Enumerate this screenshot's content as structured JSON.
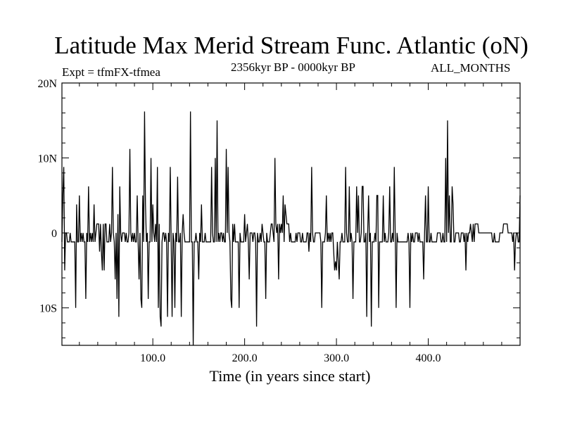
{
  "chart_data": {
    "type": "line",
    "title": "Latitude Max Merid Stream Func. Atlantic (oN)",
    "subtitle_left": "Expt = tfmFX-tfmea",
    "subtitle_center": "2356kyr BP - 0000kyr BP",
    "subtitle_right": "ALL_MONTHS",
    "xlabel": "Time (in years since start)",
    "ylabel": "",
    "xlim": [
      1,
      500
    ],
    "ylim": [
      -15,
      20
    ],
    "x_ticks": [
      {
        "value": 100,
        "label": "100.0"
      },
      {
        "value": 200,
        "label": "200.0"
      },
      {
        "value": 300,
        "label": "300.0"
      },
      {
        "value": 400,
        "label": "400.0"
      }
    ],
    "y_ticks": [
      {
        "value": 20,
        "label": "20N"
      },
      {
        "value": 10,
        "label": "10N"
      },
      {
        "value": 0,
        "label": "0"
      },
      {
        "value": -10,
        "label": "10S"
      }
    ],
    "grid": false,
    "line_color": "#000000",
    "series": [
      {
        "name": "",
        "x": [
          1,
          2,
          3,
          4,
          5,
          6,
          7,
          8,
          9,
          10,
          11,
          12,
          13,
          14,
          15,
          16,
          17,
          18,
          19,
          20,
          21,
          22,
          23,
          24,
          25,
          26,
          27,
          28,
          29,
          30,
          31,
          32,
          33,
          34,
          35,
          36,
          37,
          38,
          39,
          40,
          41,
          42,
          43,
          44,
          45,
          46,
          47,
          48,
          49,
          50,
          51,
          52,
          53,
          54,
          55,
          56,
          57,
          58,
          59,
          60,
          61,
          62,
          63,
          64,
          65,
          66,
          67,
          68,
          69,
          70,
          71,
          72,
          73,
          74,
          75,
          76,
          77,
          78,
          79,
          80,
          81,
          82,
          83,
          84,
          85,
          86,
          87,
          88,
          89,
          90,
          91,
          92,
          93,
          94,
          95,
          96,
          97,
          98,
          99,
          100,
          101,
          102,
          103,
          104,
          105,
          106,
          107,
          108,
          109,
          110,
          111,
          112,
          113,
          114,
          115,
          116,
          117,
          118,
          119,
          120,
          121,
          122,
          123,
          124,
          125,
          126,
          127,
          128,
          129,
          130,
          131,
          132,
          133,
          134,
          135,
          136,
          137,
          138,
          139,
          140,
          141,
          142,
          143,
          144,
          145,
          146,
          147,
          148,
          149,
          150,
          151,
          152,
          153,
          154,
          155,
          156,
          157,
          158,
          159,
          160,
          161,
          162,
          163,
          164,
          165,
          166,
          167,
          168,
          169,
          170,
          171,
          172,
          173,
          174,
          175,
          176,
          177,
          178,
          179,
          180,
          181,
          182,
          183,
          184,
          185,
          186,
          187,
          188,
          189,
          190,
          191,
          192,
          193,
          194,
          195,
          196,
          197,
          198,
          199,
          200,
          201,
          202,
          203,
          204,
          205,
          206,
          207,
          208,
          209,
          210,
          211,
          212,
          213,
          214,
          215,
          216,
          217,
          218,
          219,
          220,
          221,
          222,
          223,
          224,
          225,
          226,
          227,
          228,
          229,
          230,
          231,
          232,
          233,
          234,
          235,
          236,
          237,
          238,
          239,
          240,
          241,
          242,
          243,
          244,
          245,
          246,
          247,
          248,
          249,
          250,
          251,
          252,
          253,
          254,
          255,
          256,
          257,
          258,
          259,
          260,
          261,
          262,
          263,
          264,
          265,
          266,
          267,
          268,
          269,
          270,
          271,
          272,
          273,
          274,
          275,
          276,
          277,
          278,
          279,
          280,
          281,
          282,
          283,
          284,
          285,
          286,
          287,
          288,
          289,
          290,
          291,
          292,
          293,
          294,
          295,
          296,
          297,
          298,
          299,
          300,
          301,
          302,
          303,
          304,
          305,
          306,
          307,
          308,
          309,
          310,
          311,
          312,
          313,
          314,
          315,
          316,
          317,
          318,
          319,
          320,
          321,
          322,
          323,
          324,
          325,
          326,
          327,
          328,
          329,
          330,
          331,
          332,
          333,
          334,
          335,
          336,
          337,
          338,
          339,
          340,
          341,
          342,
          343,
          344,
          345,
          346,
          347,
          348,
          349,
          350,
          351,
          352,
          353,
          354,
          355,
          356,
          357,
          358,
          359,
          360,
          361,
          362,
          363,
          364,
          365,
          366,
          367,
          368,
          369,
          370,
          371,
          372,
          373,
          374,
          375,
          376,
          377,
          378,
          379,
          380,
          381,
          382,
          383,
          384,
          385,
          386,
          387,
          388,
          389,
          390,
          391,
          392,
          393,
          394,
          395,
          396,
          397,
          398,
          399,
          400,
          401,
          402,
          403,
          404,
          405,
          406,
          407,
          408,
          409,
          410,
          411,
          412,
          413,
          414,
          415,
          416,
          417,
          418,
          419,
          420,
          421,
          422,
          423,
          424,
          425,
          426,
          427,
          428,
          429,
          430,
          431,
          432,
          433,
          434,
          435,
          436,
          437,
          438,
          439,
          440,
          441,
          442,
          443,
          444,
          445,
          446,
          447,
          448,
          449,
          450,
          451,
          452,
          453,
          454,
          455,
          456,
          457,
          458,
          459,
          460,
          461,
          462,
          463,
          464,
          465,
          466,
          467,
          468,
          469,
          470,
          471,
          472,
          473,
          474,
          475,
          476,
          477,
          478,
          479,
          480,
          481,
          482,
          483,
          484,
          485,
          486,
          487,
          488,
          489,
          490,
          491,
          492,
          493,
          494,
          495,
          496,
          497,
          498,
          499,
          500
        ],
        "values": [
          -1.2,
          5.0,
          8.8,
          -5.0,
          0.0,
          0.0,
          -1.2,
          -1.2,
          -1.2,
          0.0,
          -1.2,
          -1.2,
          -1.2,
          -1.2,
          -1.2,
          -10.0,
          3.8,
          -1.2,
          -1.2,
          5.0,
          -1.2,
          0.0,
          -1.2,
          0.0,
          -1.2,
          -1.2,
          -8.8,
          0.0,
          -1.2,
          6.2,
          -1.2,
          0.0,
          -1.2,
          0.0,
          -1.2,
          3.8,
          -1.2,
          0.0,
          1.2,
          1.2,
          1.2,
          -2.5,
          1.2,
          -2.5,
          -5.0,
          1.2,
          -5.0,
          1.2,
          1.2,
          -1.2,
          -1.2,
          -1.2,
          1.2,
          -1.2,
          0.0,
          8.8,
          0.0,
          -1.2,
          -6.2,
          0.0,
          -8.8,
          2.5,
          -11.2,
          6.2,
          0.0,
          -1.2,
          0.0,
          0.0,
          0.0,
          -1.2,
          0.0,
          -1.2,
          -1.2,
          0.0,
          11.2,
          0.0,
          -1.2,
          0.0,
          -1.2,
          0.0,
          -1.2,
          -1.2,
          5.0,
          -1.2,
          -6.2,
          0.0,
          -8.8,
          -10.0,
          5.0,
          -1.2,
          16.2,
          3.8,
          -1.2,
          0.0,
          -8.8,
          -1.2,
          -1.2,
          10.0,
          -1.2,
          3.8,
          0.0,
          -1.2,
          1.2,
          -1.2,
          8.8,
          -10.0,
          1.2,
          -11.2,
          -12.5,
          -1.2,
          0.0,
          0.0,
          -1.2,
          0.0,
          -1.2,
          -11.2,
          0.0,
          -1.2,
          8.8,
          -1.2,
          -11.2,
          0.0,
          -1.2,
          -10.0,
          0.0,
          -1.2,
          7.5,
          -1.2,
          -1.2,
          0.0,
          -11.2,
          0.0,
          2.5,
          0.0,
          -1.2,
          -1.2,
          -1.2,
          -1.2,
          -1.2,
          -1.2,
          16.2,
          -1.2,
          -1.2,
          -15.0,
          -1.2,
          -1.2,
          0.0,
          -1.2,
          -1.2,
          -6.2,
          0.0,
          -1.2,
          3.8,
          -1.2,
          -1.2,
          -1.2,
          0.0,
          -1.2,
          -1.2,
          -1.2,
          -1.2,
          -1.2,
          -1.2,
          8.8,
          0.0,
          -1.2,
          -1.2,
          10.0,
          -1.2,
          15.0,
          -1.2,
          0.0,
          -1.2,
          0.0,
          0.0,
          -1.2,
          0.0,
          -1.2,
          -1.2,
          11.2,
          0.0,
          8.8,
          0.0,
          -1.2,
          -8.8,
          -10.0,
          1.2,
          -1.2,
          1.2,
          -1.2,
          -1.2,
          -1.2,
          -1.2,
          -10.0,
          0.0,
          -1.2,
          -1.2,
          -1.2,
          -1.2,
          2.5,
          -1.2,
          0.0,
          1.2,
          -1.2,
          -6.2,
          0.0,
          0.0,
          0.0,
          -1.2,
          0.0,
          0.0,
          -1.2,
          -12.5,
          0.0,
          -1.2,
          -1.2,
          0.0,
          -1.2,
          1.2,
          0.0,
          -1.2,
          -1.2,
          -8.8,
          0.0,
          -1.2,
          -1.2,
          -1.2,
          0.0,
          1.2,
          1.2,
          0.0,
          -1.2,
          10.0,
          1.2,
          0.0,
          1.2,
          -6.2,
          1.2,
          0.0,
          1.2,
          0.0,
          5.0,
          -1.2,
          3.8,
          2.5,
          1.2,
          1.2,
          1.2,
          -1.2,
          0.0,
          -1.2,
          -1.2,
          -1.2,
          -1.2,
          -1.2,
          0.0,
          -1.2,
          0.0,
          0.0,
          0.0,
          -1.2,
          -1.2,
          0.0,
          -1.2,
          -1.2,
          -1.2,
          -1.2,
          0.0,
          0.0,
          -2.5,
          0.0,
          -1.2,
          8.8,
          0.0,
          -1.2,
          -1.2,
          0.0,
          0.0,
          0.0,
          0.0,
          0.0,
          0.0,
          -1.2,
          -10.0,
          -1.2,
          -1.2,
          -1.2,
          0.0,
          5.0,
          -1.2,
          0.0,
          -1.2,
          0.0,
          -1.2,
          0.0,
          0.0,
          -2.5,
          -5.0,
          -3.8,
          -5.0,
          -1.2,
          -3.8,
          -6.2,
          -1.2,
          -1.2,
          0.0,
          -1.2,
          -1.2,
          -1.2,
          8.8,
          0.0,
          -1.2,
          -1.2,
          6.2,
          -1.2,
          0.0,
          -1.2,
          -8.8,
          -1.2,
          -1.2,
          -1.2,
          6.2,
          0.0,
          5.0,
          -1.2,
          -1.2,
          0.0,
          6.2,
          6.2,
          -1.2,
          -1.2,
          0.0,
          -11.2,
          0.0,
          5.0,
          -1.2,
          0.0,
          -12.5,
          -1.2,
          -1.2,
          -1.2,
          0.0,
          -1.2,
          5.0,
          5.0,
          -10.0,
          -1.2,
          -1.2,
          -1.2,
          -1.2,
          5.0,
          -1.2,
          0.0,
          -1.2,
          -1.2,
          -1.2,
          0.0,
          6.2,
          -1.2,
          -1.2,
          0.0,
          -1.2,
          8.8,
          0.0,
          -10.0,
          0.0,
          -1.2,
          -1.2,
          -1.2,
          -1.2,
          -1.2,
          -1.2,
          -1.2,
          -1.2,
          -1.2,
          -1.2,
          -1.2,
          0.0,
          -1.2,
          -10.0,
          0.0,
          -1.2,
          0.0,
          -1.2,
          -1.2,
          0.0,
          0.0,
          0.0,
          -1.2,
          0.0,
          -1.2,
          -1.2,
          -1.2,
          -1.2,
          -6.2,
          0.0,
          5.0,
          -1.2,
          -1.2,
          6.2,
          -1.2,
          -1.2,
          0.0,
          -1.2,
          -1.2,
          -1.2,
          -1.2,
          -1.2,
          -1.2,
          0.0,
          0.0,
          0.0,
          0.0,
          -1.2,
          -1.2,
          0.0,
          -1.2,
          -1.2,
          10.0,
          -1.2,
          15.0,
          0.0,
          5.0,
          -1.2,
          -1.2,
          6.2,
          3.8,
          -1.2,
          -1.2,
          0.0,
          0.0,
          0.0,
          0.0,
          -1.2,
          -1.2,
          0.0,
          0.0,
          0.0,
          -1.2,
          0.0,
          -5.0,
          0.0,
          -1.2,
          0.0,
          0.0,
          1.2,
          0.0,
          -1.2,
          1.2,
          -1.2,
          1.2,
          1.2,
          1.2,
          1.2,
          0.0,
          0.0,
          0.0,
          0.0,
          0.0,
          0.0,
          0.0,
          0.0,
          0.0,
          0.0,
          0.0,
          0.0,
          0.0,
          0.0,
          0.0,
          -1.2,
          -1.2,
          0.0,
          -1.2,
          -1.2,
          -1.2,
          -1.2,
          -1.2,
          0.0,
          0.0,
          0.0,
          0.0,
          1.2,
          1.2,
          1.2,
          1.2,
          1.2,
          0.0,
          0.0,
          0.0,
          0.0,
          0.0,
          -1.2,
          0.0,
          -5.0,
          -1.2,
          0.0,
          0.0,
          -1.2,
          -1.2,
          5.0
        ]
      }
    ]
  }
}
